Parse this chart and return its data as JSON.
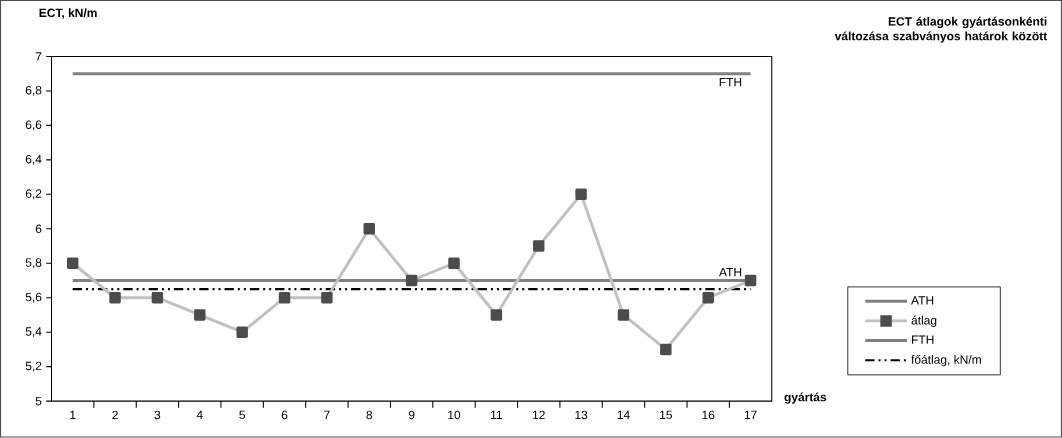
{
  "chart_data": {
    "type": "line",
    "title": "ECT átlagok gyártásonkénti változása szabványos határok között",
    "ylabel": "ECT, kN/m",
    "xlabel": "gyártás",
    "categories": [
      "1",
      "2",
      "3",
      "4",
      "5",
      "6",
      "7",
      "8",
      "9",
      "10",
      "11",
      "12",
      "13",
      "14",
      "15",
      "16",
      "17"
    ],
    "series": [
      {
        "name": "ATH",
        "color": "#808080",
        "marker": "none",
        "line_style": "solid",
        "values": [
          5.7,
          5.7,
          5.7,
          5.7,
          5.7,
          5.7,
          5.7,
          5.7,
          5.7,
          5.7,
          5.7,
          5.7,
          5.7,
          5.7,
          5.7,
          5.7,
          5.7
        ]
      },
      {
        "name": "átlag",
        "color": "#c0c0c0",
        "marker": "square",
        "line_style": "solid",
        "values": [
          5.8,
          5.6,
          5.6,
          5.5,
          5.4,
          5.6,
          5.6,
          6.0,
          5.7,
          5.8,
          5.5,
          5.9,
          6.2,
          5.5,
          5.3,
          5.6,
          5.7
        ]
      },
      {
        "name": "FTH",
        "color": "#808080",
        "marker": "none",
        "line_style": "solid",
        "values": [
          6.9,
          6.9,
          6.9,
          6.9,
          6.9,
          6.9,
          6.9,
          6.9,
          6.9,
          6.9,
          6.9,
          6.9,
          6.9,
          6.9,
          6.9,
          6.9,
          6.9
        ]
      },
      {
        "name": "főátlag, kN/m",
        "color": "#000000",
        "marker": "none",
        "line_style": "dashed",
        "values": [
          5.65,
          5.65,
          5.65,
          5.65,
          5.65,
          5.65,
          5.65,
          5.65,
          5.65,
          5.65,
          5.65,
          5.65,
          5.65,
          5.65,
          5.65,
          5.65,
          5.65
        ]
      }
    ],
    "annotations": [
      {
        "text": "FTH",
        "x": "17",
        "y": 6.9
      },
      {
        "text": "ATH",
        "x": "17",
        "y": 5.7
      }
    ],
    "ylim": [
      5,
      7
    ],
    "yticks": [
      5,
      {
        "value": 5.2,
        "label": "5,2"
      },
      {
        "value": 5.4,
        "label": "5,4"
      },
      {
        "value": 5.6,
        "label": "5,6"
      },
      {
        "value": 5.8,
        "label": "5,8"
      },
      6,
      {
        "value": 6.2,
        "label": "6,2"
      },
      {
        "value": 6.4,
        "label": "6,4"
      },
      {
        "value": 6.6,
        "label": "6,6"
      },
      {
        "value": 6.8,
        "label": "6,8"
      },
      7
    ],
    "grid": false,
    "legend": "right"
  }
}
